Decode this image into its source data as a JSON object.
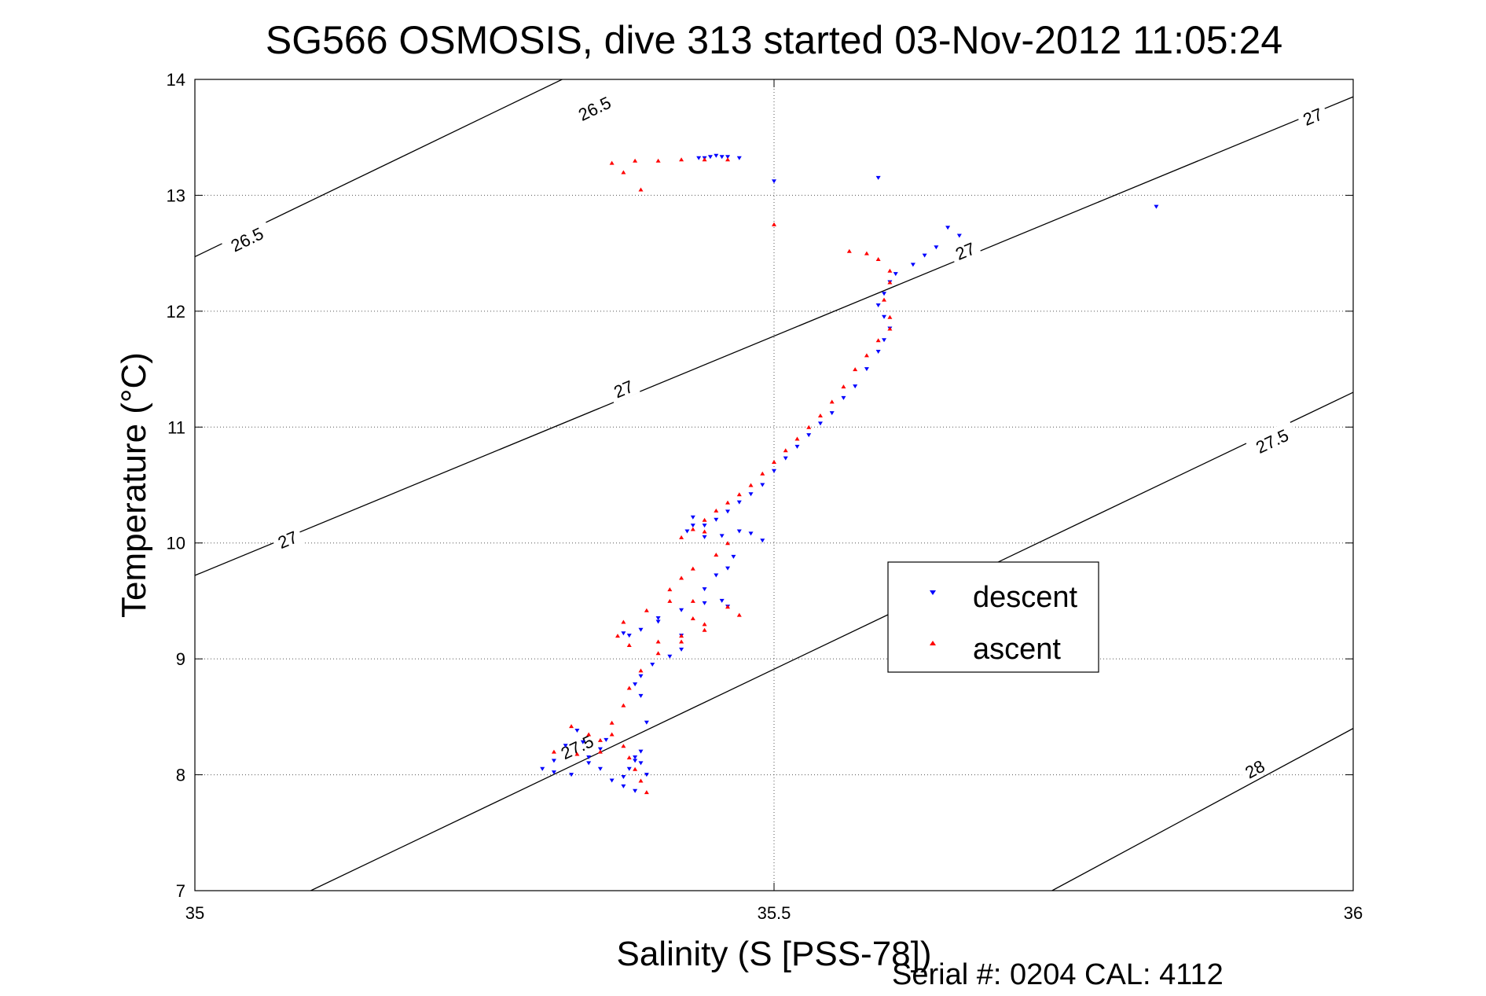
{
  "chart_data": {
    "type": "scatter",
    "title": "SG566 OSMOSIS, dive 313 started 03-Nov-2012 11:05:24",
    "xlabel": "Salinity (S [PSS-78])",
    "ylabel": "Temperature (°C)",
    "footer": "Serial #: 0204  CAL: 4112",
    "xlim": [
      35,
      36
    ],
    "ylim": [
      7,
      14
    ],
    "xticks": [
      35,
      35.5,
      36
    ],
    "xtick_labels": [
      "35",
      "35.5",
      "36"
    ],
    "yticks": [
      7,
      8,
      9,
      10,
      11,
      12,
      13,
      14
    ],
    "ytick_labels": [
      "7",
      "8",
      "9",
      "10",
      "11",
      "12",
      "13",
      "14"
    ],
    "grid": true,
    "legend_position": "right-center",
    "contours": [
      {
        "level": 26.5,
        "points": [
          [
            35,
            12.47
          ],
          [
            35.4,
            14.4
          ]
        ],
        "labels": [
          {
            "text": "26.5",
            "s": 35.045,
            "t": 12.62
          },
          {
            "text": "26.5",
            "s": 35.345,
            "t": 13.75
          }
        ]
      },
      {
        "level": 27,
        "points": [
          [
            35,
            9.72
          ],
          [
            36,
            13.85
          ]
        ],
        "labels": [
          {
            "text": "27",
            "s": 35.08,
            "t": 10.03
          },
          {
            "text": "27",
            "s": 35.37,
            "t": 11.33
          },
          {
            "text": "27",
            "s": 35.665,
            "t": 12.52
          },
          {
            "text": "27",
            "s": 35.965,
            "t": 13.68
          }
        ]
      },
      {
        "level": 27.5,
        "points": [
          [
            35.1,
            7
          ],
          [
            36,
            11.3
          ]
        ],
        "labels": [
          {
            "text": "27.5",
            "s": 35.33,
            "t": 8.24
          },
          {
            "text": "27.5",
            "s": 35.93,
            "t": 10.88
          }
        ]
      },
      {
        "level": 28,
        "points": [
          [
            35.74,
            7
          ],
          [
            36,
            8.4
          ]
        ],
        "labels": [
          {
            "text": "28",
            "s": 35.915,
            "t": 8.05
          }
        ]
      }
    ],
    "series": [
      {
        "name": "descent",
        "color": "#0000ff",
        "marker": "triangle-down",
        "x": [
          35.47,
          35.46,
          35.455,
          35.45,
          35.445,
          35.44,
          35.435,
          35.5,
          35.59,
          35.83,
          35.65,
          35.66,
          35.64,
          35.63,
          35.62,
          35.605,
          35.6,
          35.595,
          35.59,
          35.595,
          35.6,
          35.595,
          35.59,
          35.58,
          35.57,
          35.56,
          35.55,
          35.54,
          35.53,
          35.52,
          35.51,
          35.5,
          35.49,
          35.48,
          35.47,
          35.46,
          35.45,
          35.44,
          35.43,
          35.43,
          35.425,
          35.44,
          35.455,
          35.47,
          35.48,
          35.49,
          35.465,
          35.46,
          35.45,
          35.44,
          35.455,
          35.46,
          35.44,
          35.42,
          35.4,
          35.385,
          35.375,
          35.37,
          35.4,
          35.42,
          35.42,
          35.41,
          35.395,
          35.385,
          35.38,
          35.385,
          35.39,
          35.385,
          35.38,
          35.375,
          35.37,
          35.37,
          35.36,
          35.35,
          35.34,
          35.335,
          35.33,
          35.32,
          35.31,
          35.3,
          35.31,
          35.325,
          35.34,
          35.35,
          35.355,
          35.38,
          35.385,
          35.39,
          35.38
        ],
        "y": [
          13.32,
          13.33,
          13.33,
          13.34,
          13.33,
          13.32,
          13.32,
          13.12,
          13.15,
          12.9,
          12.72,
          12.65,
          12.55,
          12.48,
          12.4,
          12.32,
          12.25,
          12.15,
          12.05,
          11.95,
          11.85,
          11.75,
          11.65,
          11.5,
          11.35,
          11.25,
          11.12,
          11.03,
          10.93,
          10.83,
          10.73,
          10.62,
          10.5,
          10.42,
          10.35,
          10.27,
          10.2,
          10.15,
          10.15,
          10.22,
          10.1,
          10.05,
          10.06,
          10.1,
          10.08,
          10.02,
          9.88,
          9.78,
          9.72,
          9.6,
          9.5,
          9.45,
          9.48,
          9.42,
          9.35,
          9.25,
          9.2,
          9.22,
          9.32,
          9.2,
          9.08,
          9.02,
          8.95,
          8.85,
          8.78,
          8.68,
          8.45,
          8.2,
          8.12,
          8.05,
          7.98,
          7.9,
          7.95,
          8.05,
          8.15,
          8.28,
          8.38,
          8.25,
          8.12,
          8.05,
          8.02,
          8.0,
          8.1,
          8.22,
          8.3,
          8.15,
          8.1,
          8.0,
          7.86
        ]
      },
      {
        "name": "ascent",
        "color": "#ff0000",
        "marker": "triangle-up",
        "x": [
          35.36,
          35.38,
          35.4,
          35.42,
          35.44,
          35.46,
          35.37,
          35.385,
          35.5,
          35.565,
          35.58,
          35.59,
          35.6,
          35.6,
          35.595,
          35.6,
          35.6,
          35.59,
          35.58,
          35.57,
          35.56,
          35.55,
          35.54,
          35.53,
          35.52,
          35.51,
          35.5,
          35.49,
          35.48,
          35.47,
          35.46,
          35.45,
          35.44,
          35.43,
          35.42,
          35.44,
          35.46,
          35.45,
          35.43,
          35.42,
          35.41,
          35.43,
          35.46,
          35.47,
          35.44,
          35.42,
          35.4,
          35.375,
          35.365,
          35.37,
          35.39,
          35.41,
          35.43,
          35.44,
          35.42,
          35.4,
          35.385,
          35.375,
          35.37,
          35.36,
          35.35,
          35.34,
          35.325,
          35.31,
          35.33,
          35.35,
          35.36,
          35.37,
          35.375,
          35.38,
          35.385,
          35.39
        ],
        "y": [
          13.28,
          13.3,
          13.3,
          13.31,
          13.31,
          13.31,
          13.2,
          13.05,
          12.75,
          12.52,
          12.5,
          12.45,
          12.35,
          12.25,
          12.1,
          11.95,
          11.85,
          11.75,
          11.62,
          11.5,
          11.35,
          11.22,
          11.1,
          11.0,
          10.9,
          10.8,
          10.7,
          10.6,
          10.5,
          10.42,
          10.35,
          10.28,
          10.2,
          10.12,
          10.05,
          10.1,
          10.0,
          9.9,
          9.78,
          9.7,
          9.6,
          9.5,
          9.45,
          9.38,
          9.3,
          9.2,
          9.15,
          9.12,
          9.2,
          9.32,
          9.42,
          9.5,
          9.35,
          9.25,
          9.15,
          9.05,
          8.9,
          8.75,
          8.6,
          8.45,
          8.3,
          8.35,
          8.42,
          8.2,
          8.18,
          8.2,
          8.35,
          8.25,
          8.15,
          8.05,
          7.95,
          7.85
        ]
      }
    ]
  }
}
